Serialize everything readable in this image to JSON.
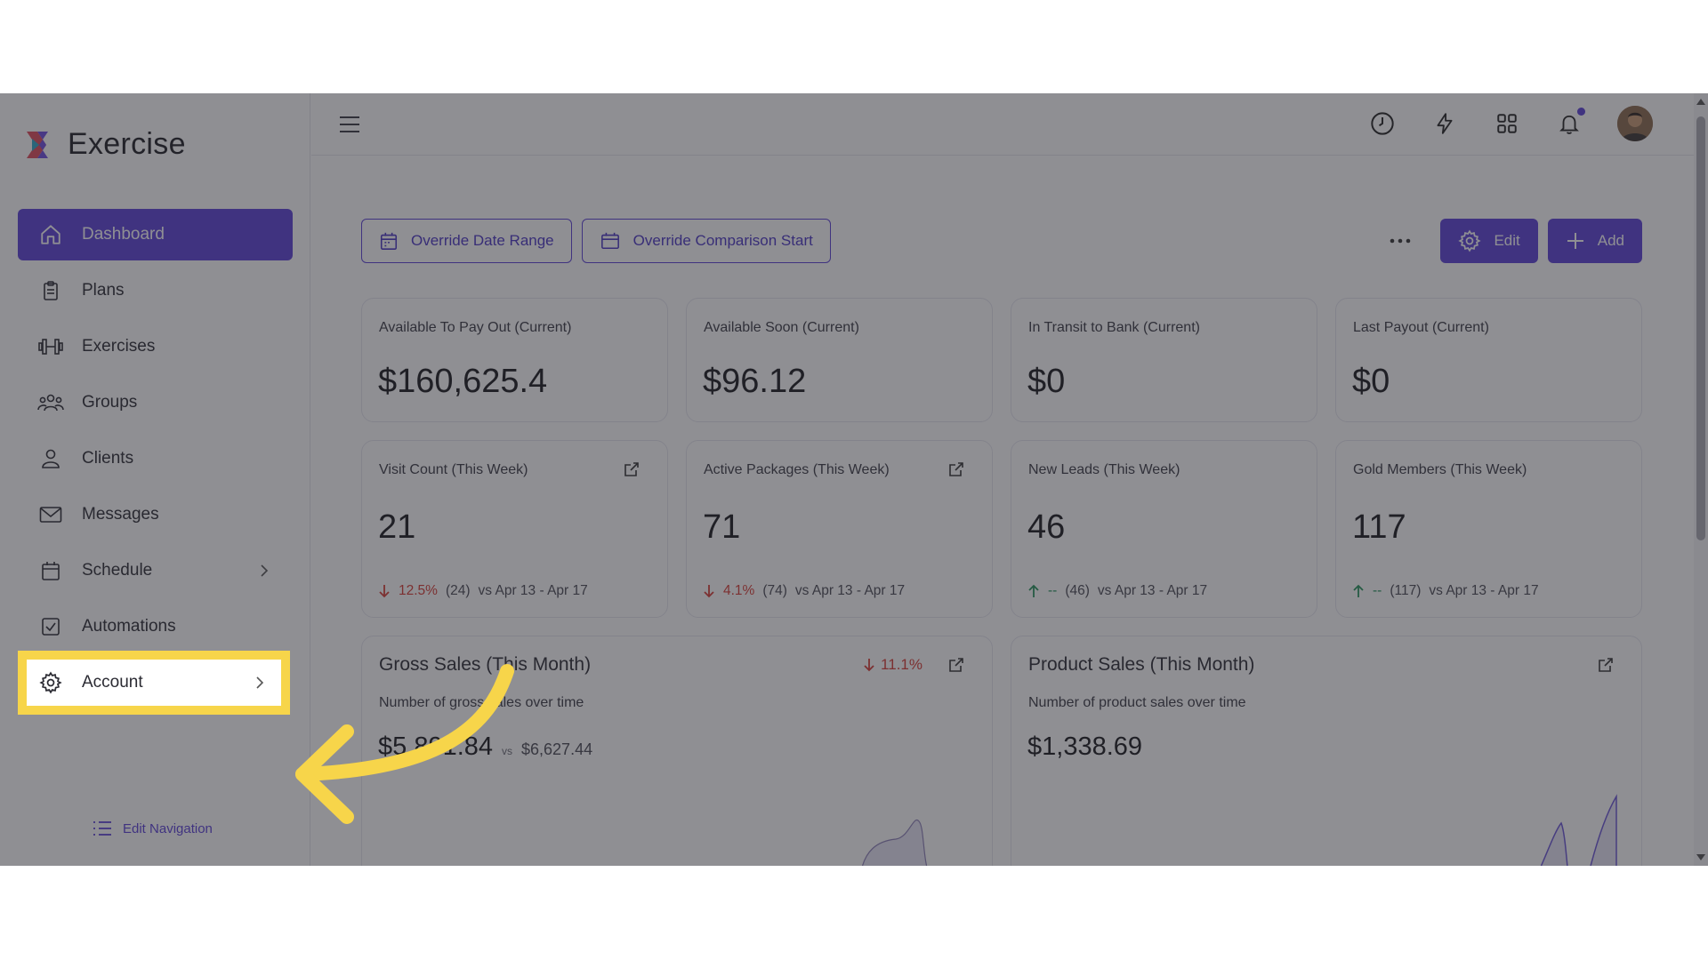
{
  "app": {
    "name": "Exercise"
  },
  "sidebar": {
    "items": [
      {
        "label": "Dashboard",
        "icon": "home-icon",
        "active": true
      },
      {
        "label": "Plans",
        "icon": "clipboard-icon"
      },
      {
        "label": "Exercises",
        "icon": "dumbbell-icon"
      },
      {
        "label": "Groups",
        "icon": "group-icon"
      },
      {
        "label": "Clients",
        "icon": "user-icon"
      },
      {
        "label": "Messages",
        "icon": "mail-icon"
      },
      {
        "label": "Schedule",
        "icon": "calendar-icon",
        "has_chevron": true
      },
      {
        "label": "Automations",
        "icon": "checkbox-icon"
      },
      {
        "label": "Account",
        "icon": "gear-icon",
        "has_chevron": true,
        "highlighted": true
      }
    ],
    "edit_navigation": "Edit Navigation"
  },
  "toolbar": {
    "override_date_range": "Override Date Range",
    "override_comparison_start": "Override Comparison Start",
    "edit": "Edit",
    "add": "Add"
  },
  "stats_top": [
    {
      "label": "Available To Pay Out (Current)",
      "value": "$160,625.4"
    },
    {
      "label": "Available Soon (Current)",
      "value": "$96.12"
    },
    {
      "label": "In Transit to Bank (Current)",
      "value": "$0"
    },
    {
      "label": "Last Payout (Current)",
      "value": "$0"
    }
  ],
  "stats_week": [
    {
      "label": "Visit Count (This Week)",
      "value": "21",
      "trend": "down",
      "pct": "12.5%",
      "prev": "(24)",
      "period": "vs Apr 13 - Apr 17",
      "external": true
    },
    {
      "label": "Active Packages (This Week)",
      "value": "71",
      "trend": "down",
      "pct": "4.1%",
      "prev": "(74)",
      "period": "vs Apr 13 - Apr 17",
      "external": true
    },
    {
      "label": "New Leads (This Week)",
      "value": "46",
      "trend": "up",
      "pct": "--",
      "prev": "(46)",
      "period": "vs Apr 13 - Apr 17",
      "external": false
    },
    {
      "label": "Gold Members (This Week)",
      "value": "117",
      "trend": "up",
      "pct": "--",
      "prev": "(117)",
      "period": "vs Apr 13 - Apr 17",
      "external": false
    }
  ],
  "gross_sales": {
    "title": "Gross Sales (This Month)",
    "subtitle": "Number of gross sales over time",
    "value": "$5,891.84",
    "vs": "vs",
    "compare": "$6,627.44",
    "delta": "11.1%"
  },
  "product_sales": {
    "title": "Product Sales (This Month)",
    "subtitle": "Number of product sales over time",
    "value": "$1,338.69"
  },
  "colors": {
    "accent": "#5a3fd8",
    "highlight": "#f7d54a",
    "down": "#d83a32",
    "up": "#23935a"
  }
}
